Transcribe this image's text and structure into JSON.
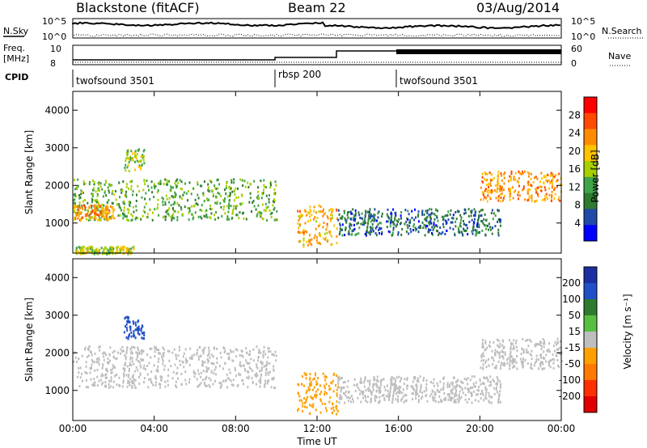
{
  "header": {
    "radar": "Blackstone (fitACF)",
    "beam": "Beam 22",
    "date": "03/Aug/2014"
  },
  "noise_panel": {
    "left_label": "N.Sky",
    "right_label": "N.Search",
    "ticks": [
      "10^5",
      "10^0"
    ]
  },
  "freq_panel": {
    "left_label_1": "Freq.",
    "left_label_2": "[MHz]",
    "left_ticks": [
      "10",
      "8"
    ],
    "right_label": "Nave",
    "right_ticks": [
      "60",
      "0"
    ]
  },
  "cpid": {
    "label": "CPID",
    "segments": [
      {
        "name": "twofsound 3501",
        "start": "00:00"
      },
      {
        "name": "rbsp 200",
        "start": "10:00"
      },
      {
        "name": "twofsound 3501",
        "start": "16:00"
      }
    ]
  },
  "axes": {
    "ylabel": "Slant Range [km]",
    "xlabel": "Time UT",
    "yticks": [
      "4000",
      "3000",
      "2000",
      "1000"
    ],
    "xticks": [
      "00:00",
      "04:00",
      "08:00",
      "12:00",
      "16:00",
      "20:00",
      "00:00"
    ]
  },
  "power_colorbar": {
    "label": "Power [dB]",
    "ticks": [
      "28",
      "24",
      "20",
      "16",
      "12",
      "8",
      "4"
    ],
    "colors": [
      "#ff0000",
      "#ff4a00",
      "#ff8c00",
      "#ffc400",
      "#a8d000",
      "#3fa34a",
      "#2e7a2e",
      "#1f4aa8",
      "#0000ff"
    ]
  },
  "velocity_colorbar": {
    "label": "Velocity [m s⁻¹]",
    "ticks": [
      "200",
      "100",
      "50",
      "15",
      "-15",
      "-50",
      "-100",
      "-200"
    ],
    "colors": [
      "#1a2fa0",
      "#2050c8",
      "#2e7a2e",
      "#58c040",
      "#bebebe",
      "#ffa000",
      "#ff7a00",
      "#ff3000",
      "#e00000"
    ]
  },
  "chart_data": [
    {
      "type": "heatmap",
      "title": "Power",
      "xlabel": "Time UT",
      "ylabel": "Slant Range [km]",
      "xlim": [
        0,
        24
      ],
      "ylim": [
        200,
        4500
      ],
      "colorbar_label": "Power [dB]",
      "colorbar_range": [
        0,
        30
      ],
      "features": [
        {
          "t_range": [
            0,
            10
          ],
          "range_km": [
            1100,
            2200
          ],
          "power_db": 12
        },
        {
          "t_range": [
            0,
            2
          ],
          "range_km": [
            1100,
            1500
          ],
          "power_db": 22
        },
        {
          "t_range": [
            2.5,
            3.5
          ],
          "range_km": [
            2400,
            3000
          ],
          "power_db": 14
        },
        {
          "t_range": [
            11,
            13
          ],
          "range_km": [
            400,
            1500
          ],
          "power_db": 20
        },
        {
          "t_range": [
            13,
            21
          ],
          "range_km": [
            700,
            1400
          ],
          "power_db": 6
        },
        {
          "t_range": [
            20,
            24
          ],
          "range_km": [
            1600,
            2400
          ],
          "power_db": 22
        },
        {
          "t_range": [
            0,
            3
          ],
          "range_km": [
            200,
            400
          ],
          "power_db": 16
        }
      ]
    },
    {
      "type": "heatmap",
      "title": "Velocity",
      "xlabel": "Time UT",
      "ylabel": "Slant Range [km]",
      "xlim": [
        0,
        24
      ],
      "ylim": [
        200,
        4500
      ],
      "colorbar_label": "Velocity [m s⁻¹]",
      "colorbar_range": [
        -200,
        200
      ],
      "features": [
        {
          "t_range": [
            0,
            10
          ],
          "range_km": [
            1100,
            2200
          ],
          "velocity": -5
        },
        {
          "t_range": [
            2.5,
            3.5
          ],
          "range_km": [
            2400,
            3000
          ],
          "velocity": 150
        },
        {
          "t_range": [
            11,
            13
          ],
          "range_km": [
            400,
            1500
          ],
          "velocity": -50
        },
        {
          "t_range": [
            13,
            21
          ],
          "range_km": [
            700,
            1400
          ],
          "velocity": 5
        },
        {
          "t_range": [
            20,
            24
          ],
          "range_km": [
            1600,
            2400
          ],
          "velocity": 0
        }
      ]
    }
  ]
}
